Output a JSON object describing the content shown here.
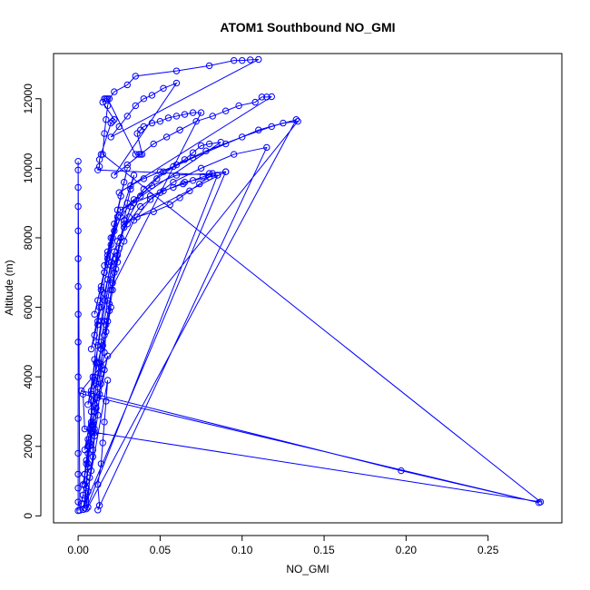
{
  "chart_data": {
    "type": "scatter",
    "title": "ATOM1 Southbound NO_GMI",
    "xlabel": "NO_GMI",
    "ylabel": "Altitude (m)",
    "xlim": [
      -0.015,
      0.295
    ],
    "ylim": [
      -200,
      13300
    ],
    "xticks": [
      "0.00",
      "0.05",
      "0.10",
      "0.15",
      "0.20",
      "0.25"
    ],
    "yticks": [
      "0",
      "2000",
      "4000",
      "6000",
      "8000",
      "10000",
      "12000"
    ],
    "xtick_values": [
      0,
      0.05,
      0.1,
      0.15,
      0.2,
      0.25
    ],
    "ytick_values": [
      0,
      2000,
      4000,
      6000,
      8000,
      10000,
      12000
    ],
    "grid": false,
    "series": [
      {
        "color": "#0000ff",
        "marker": "open-circle",
        "line": true,
        "points": [
          [
            0.0,
            150
          ],
          [
            0.0,
            400
          ],
          [
            0.0,
            800
          ],
          [
            0.0,
            1200
          ],
          [
            0.0,
            1800
          ],
          [
            0.0,
            2800
          ],
          [
            0.0,
            4000
          ],
          [
            0.0,
            5000
          ],
          [
            0.0,
            5800
          ],
          [
            0.0,
            6600
          ],
          [
            0.0,
            7400
          ],
          [
            0.0,
            8200
          ],
          [
            0.0,
            8900
          ],
          [
            0.0,
            9450
          ],
          [
            0.0,
            9950
          ],
          [
            0.0,
            10200
          ],
          [
            0.001,
            160
          ],
          [
            0.002,
            350
          ],
          [
            0.003,
            600
          ],
          [
            0.004,
            900
          ],
          [
            0.004,
            1200
          ],
          [
            0.005,
            1600
          ],
          [
            0.006,
            2000
          ],
          [
            0.007,
            2500
          ],
          [
            0.008,
            3000
          ],
          [
            0.008,
            3500
          ],
          [
            0.009,
            4000
          ],
          [
            0.01,
            4500
          ],
          [
            0.011,
            5000
          ],
          [
            0.012,
            5500
          ],
          [
            0.013,
            6000
          ],
          [
            0.014,
            6500
          ],
          [
            0.016,
            7000
          ],
          [
            0.018,
            7500
          ],
          [
            0.021,
            8000
          ],
          [
            0.026,
            8600
          ],
          [
            0.034,
            9100
          ],
          [
            0.045,
            9500
          ],
          [
            0.06,
            9800
          ],
          [
            0.08,
            9850
          ],
          [
            0.09,
            9900
          ],
          [
            0.003,
            180
          ],
          [
            0.004,
            500
          ],
          [
            0.005,
            1000
          ],
          [
            0.006,
            1500
          ],
          [
            0.007,
            2100
          ],
          [
            0.008,
            2700
          ],
          [
            0.009,
            3300
          ],
          [
            0.01,
            3900
          ],
          [
            0.011,
            4400
          ],
          [
            0.012,
            4900
          ],
          [
            0.014,
            5600
          ],
          [
            0.016,
            6200
          ],
          [
            0.018,
            6800
          ],
          [
            0.02,
            7300
          ],
          [
            0.024,
            7900
          ],
          [
            0.03,
            8400
          ],
          [
            0.038,
            8900
          ],
          [
            0.05,
            9300
          ],
          [
            0.065,
            9600
          ],
          [
            0.085,
            9800
          ],
          [
            0.005,
            200
          ],
          [
            0.006,
            700
          ],
          [
            0.008,
            1300
          ],
          [
            0.009,
            1900
          ],
          [
            0.01,
            2500
          ],
          [
            0.011,
            3100
          ],
          [
            0.012,
            3700
          ],
          [
            0.014,
            4300
          ],
          [
            0.015,
            4900
          ],
          [
            0.017,
            5500
          ],
          [
            0.019,
            6100
          ],
          [
            0.021,
            6700
          ],
          [
            0.024,
            7300
          ],
          [
            0.028,
            7900
          ],
          [
            0.034,
            8500
          ],
          [
            0.044,
            9100
          ],
          [
            0.058,
            9600
          ],
          [
            0.075,
            10000
          ],
          [
            0.095,
            10400
          ],
          [
            0.115,
            10600
          ],
          [
            0.012,
            170
          ],
          [
            0.013,
            300
          ],
          [
            0.012,
            900
          ],
          [
            0.014,
            1500
          ],
          [
            0.015,
            2100
          ],
          [
            0.016,
            2700
          ],
          [
            0.017,
            3300
          ],
          [
            0.018,
            3900
          ],
          [
            0.004,
            220
          ],
          [
            0.005,
            800
          ],
          [
            0.006,
            1400
          ],
          [
            0.007,
            2000
          ],
          [
            0.009,
            2600
          ],
          [
            0.01,
            3200
          ],
          [
            0.011,
            3800
          ],
          [
            0.013,
            4400
          ],
          [
            0.014,
            5000
          ],
          [
            0.016,
            5600
          ],
          [
            0.018,
            6200
          ],
          [
            0.02,
            6800
          ],
          [
            0.023,
            7400
          ],
          [
            0.026,
            8000
          ],
          [
            0.031,
            8600
          ],
          [
            0.038,
            9200
          ],
          [
            0.048,
            9700
          ],
          [
            0.06,
            10100
          ],
          [
            0.078,
            10500
          ],
          [
            0.1,
            10900
          ],
          [
            0.118,
            11200
          ],
          [
            0.133,
            11400
          ],
          [
            0.006,
            250
          ],
          [
            0.007,
            1100
          ],
          [
            0.009,
            1700
          ],
          [
            0.01,
            2300
          ],
          [
            0.012,
            2900
          ],
          [
            0.013,
            3500
          ],
          [
            0.014,
            4100
          ],
          [
            0.016,
            4700
          ],
          [
            0.017,
            5300
          ],
          [
            0.019,
            5900
          ],
          [
            0.021,
            6500
          ],
          [
            0.023,
            7100
          ],
          [
            0.025,
            7700
          ],
          [
            0.028,
            8300
          ],
          [
            0.032,
            8900
          ],
          [
            0.04,
            9400
          ],
          [
            0.052,
            9900
          ],
          [
            0.07,
            10300
          ],
          [
            0.09,
            10700
          ],
          [
            0.11,
            11100
          ],
          [
            0.125,
            11300
          ],
          [
            0.134,
            11350
          ],
          [
            0.002,
            3600
          ],
          [
            0.197,
            1300
          ],
          [
            0.281,
            380
          ],
          [
            0.003,
            3500
          ],
          [
            0.004,
            2500
          ],
          [
            0.01,
            2400
          ],
          [
            0.282,
            400
          ],
          [
            0.015,
            10400
          ],
          [
            0.016,
            11000
          ],
          [
            0.017,
            11400
          ],
          [
            0.018,
            11800
          ],
          [
            0.019,
            12000
          ],
          [
            0.022,
            12200
          ],
          [
            0.03,
            12400
          ],
          [
            0.035,
            12650
          ],
          [
            0.06,
            12800
          ],
          [
            0.08,
            12950
          ],
          [
            0.095,
            13100
          ],
          [
            0.1,
            13100
          ],
          [
            0.105,
            13120
          ],
          [
            0.11,
            13130
          ],
          [
            0.02,
            10900
          ],
          [
            0.025,
            11200
          ],
          [
            0.03,
            11500
          ],
          [
            0.035,
            11800
          ],
          [
            0.04,
            12000
          ],
          [
            0.045,
            12100
          ],
          [
            0.052,
            12300
          ],
          [
            0.06,
            12450
          ],
          [
            0.022,
            9800
          ],
          [
            0.03,
            10100
          ],
          [
            0.038,
            10400
          ],
          [
            0.046,
            10700
          ],
          [
            0.054,
            10900
          ],
          [
            0.062,
            11100
          ],
          [
            0.072,
            11350
          ],
          [
            0.082,
            11500
          ],
          [
            0.09,
            11650
          ],
          [
            0.098,
            11800
          ],
          [
            0.108,
            11900
          ],
          [
            0.112,
            12050
          ],
          [
            0.115,
            12050
          ],
          [
            0.118,
            12060
          ],
          [
            0.025,
            9300
          ],
          [
            0.032,
            9500
          ],
          [
            0.04,
            9700
          ],
          [
            0.05,
            9900
          ],
          [
            0.058,
            10050
          ],
          [
            0.065,
            10250
          ],
          [
            0.07,
            10450
          ],
          [
            0.075,
            10650
          ],
          [
            0.08,
            10700
          ],
          [
            0.087,
            10750
          ],
          [
            0.026,
            8800
          ],
          [
            0.034,
            9000
          ],
          [
            0.044,
            9200
          ],
          [
            0.052,
            9350
          ],
          [
            0.058,
            9450
          ],
          [
            0.064,
            9550
          ],
          [
            0.07,
            9650
          ],
          [
            0.076,
            9750
          ],
          [
            0.082,
            9850
          ],
          [
            0.09,
            9900
          ],
          [
            0.028,
            8400
          ],
          [
            0.036,
            8600
          ],
          [
            0.046,
            8750
          ],
          [
            0.056,
            8950
          ],
          [
            0.062,
            9150
          ],
          [
            0.068,
            9350
          ],
          [
            0.074,
            9550
          ],
          [
            0.08,
            9750
          ],
          [
            0.085,
            9800
          ],
          [
            0.012,
            9950
          ],
          [
            0.013,
            10050
          ],
          [
            0.013,
            10250
          ],
          [
            0.014,
            10400
          ],
          [
            0.02,
            11300
          ],
          [
            0.021,
            11350
          ],
          [
            0.022,
            11400
          ],
          [
            0.015,
            11900
          ],
          [
            0.016,
            12000
          ],
          [
            0.017,
            12000
          ],
          [
            0.018,
            12000
          ],
          [
            0.035,
            10400
          ],
          [
            0.037,
            10400
          ],
          [
            0.039,
            10400
          ],
          [
            0.036,
            11000
          ],
          [
            0.038,
            11100
          ],
          [
            0.04,
            11200
          ],
          [
            0.045,
            11300
          ],
          [
            0.05,
            11350
          ],
          [
            0.055,
            11450
          ],
          [
            0.06,
            11500
          ],
          [
            0.065,
            11550
          ],
          [
            0.07,
            11600
          ],
          [
            0.075,
            11600
          ],
          [
            0.02,
            6500
          ],
          [
            0.022,
            7000
          ],
          [
            0.024,
            7500
          ],
          [
            0.026,
            8000
          ],
          [
            0.028,
            8500
          ],
          [
            0.03,
            9000
          ],
          [
            0.032,
            9400
          ],
          [
            0.034,
            9800
          ],
          [
            0.016,
            7200
          ],
          [
            0.018,
            7600
          ],
          [
            0.02,
            8000
          ],
          [
            0.022,
            8400
          ],
          [
            0.024,
            8800
          ],
          [
            0.026,
            9200
          ],
          [
            0.028,
            9600
          ],
          [
            0.03,
            10000
          ],
          [
            0.01,
            5800
          ],
          [
            0.012,
            6200
          ],
          [
            0.014,
            6600
          ],
          [
            0.016,
            7000
          ],
          [
            0.018,
            7400
          ],
          [
            0.02,
            7800
          ],
          [
            0.022,
            8200
          ],
          [
            0.024,
            8600
          ],
          [
            0.008,
            4800
          ],
          [
            0.01,
            5200
          ],
          [
            0.012,
            5600
          ],
          [
            0.014,
            6000
          ],
          [
            0.016,
            6400
          ],
          [
            0.018,
            6800
          ],
          [
            0.02,
            7200
          ],
          [
            0.022,
            7600
          ],
          [
            0.006,
            3200
          ],
          [
            0.008,
            3600
          ],
          [
            0.01,
            4000
          ],
          [
            0.012,
            4400
          ],
          [
            0.014,
            4800
          ],
          [
            0.016,
            5200
          ],
          [
            0.018,
            5600
          ],
          [
            0.02,
            6000
          ],
          [
            0.004,
            1900
          ],
          [
            0.006,
            2200
          ],
          [
            0.008,
            2600
          ],
          [
            0.01,
            3000
          ],
          [
            0.012,
            3400
          ],
          [
            0.014,
            3800
          ],
          [
            0.016,
            4200
          ],
          [
            0.018,
            4600
          ],
          [
            0.003,
            900
          ],
          [
            0.004,
            1200
          ],
          [
            0.005,
            1500
          ],
          [
            0.006,
            1800
          ],
          [
            0.007,
            2100
          ],
          [
            0.008,
            2400
          ],
          [
            0.009,
            2700
          ],
          [
            0.01,
            3000
          ]
        ]
      }
    ]
  }
}
